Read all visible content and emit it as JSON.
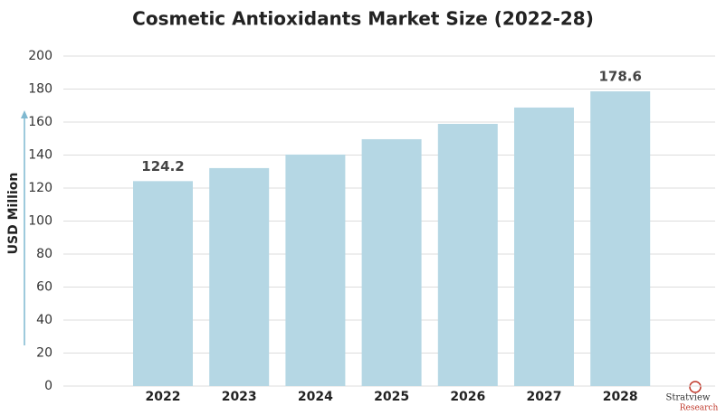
{
  "chart_data": {
    "type": "bar",
    "title": "Cosmetic Antioxidants Market Size (2022-28)",
    "y_label": "USD Million",
    "categories": [
      "2022",
      "2023",
      "2024",
      "2025",
      "2026",
      "2027",
      "2028"
    ],
    "values": [
      124.2,
      132.1,
      140.3,
      149.6,
      158.9,
      168.8,
      178.6
    ],
    "value_labels": [
      "124.2",
      null,
      null,
      null,
      null,
      null,
      "178.6"
    ],
    "color": "#b5d7e4",
    "ylim": [
      0,
      200
    ],
    "yticks": [
      0,
      20,
      40,
      60,
      80,
      100,
      120,
      140,
      160,
      180,
      200
    ],
    "grid": true,
    "logo": {
      "name": "Stratview",
      "sub": "Research"
    }
  }
}
